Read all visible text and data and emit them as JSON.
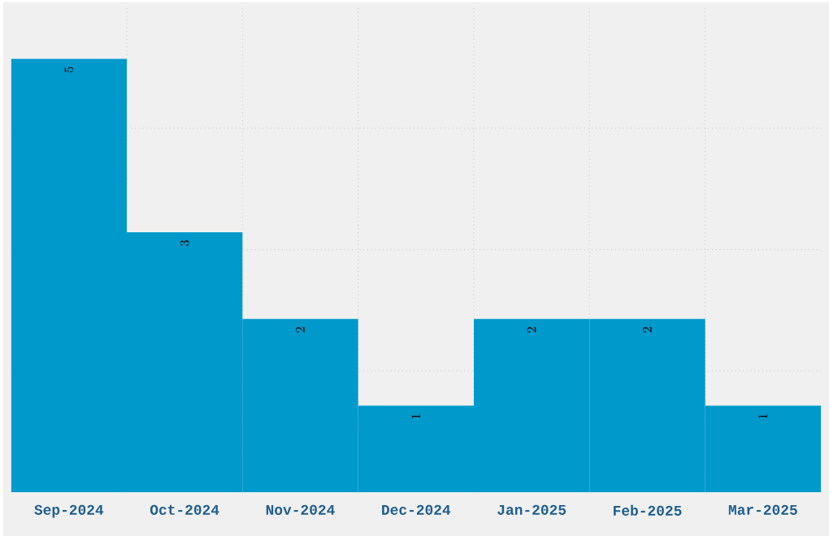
{
  "chart_data": {
    "type": "bar",
    "categories": [
      "Sep-2024",
      "Oct-2024",
      "Nov-2024",
      "Dec-2024",
      "Jan-2025",
      "Feb-2025",
      "Mar-2025"
    ],
    "values": [
      5,
      3,
      2,
      1,
      2,
      2,
      1
    ],
    "color": "#0099cc",
    "ylim": [
      0,
      5.6
    ],
    "yticks": [
      {
        "value": 1.4,
        "label": null
      },
      {
        "value": 2.8,
        "label": null
      },
      {
        "value": 4.2,
        "label": null
      }
    ],
    "grid": true,
    "data_labels": true,
    "tick_labels": "x"
  }
}
